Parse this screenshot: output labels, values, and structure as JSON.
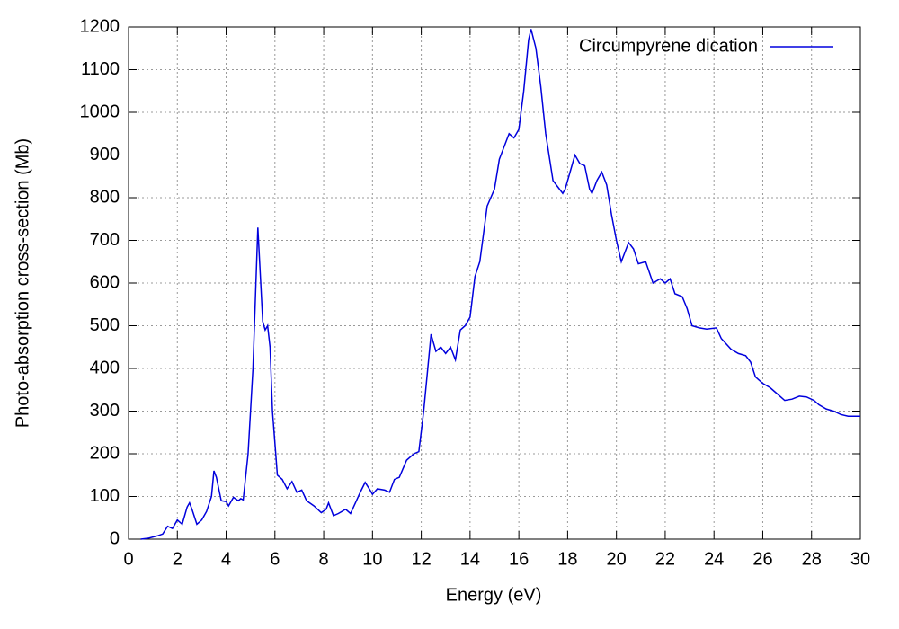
{
  "chart_data": {
    "type": "line",
    "xlabel": "Energy (eV)",
    "ylabel": "Photo-absorption cross-section (Mb)",
    "x": [
      0.5,
      0.8,
      1.0,
      1.2,
      1.4,
      1.6,
      1.8,
      2.0,
      2.2,
      2.4,
      2.5,
      2.6,
      2.8,
      3.0,
      3.2,
      3.4,
      3.5,
      3.6,
      3.8,
      4.0,
      4.1,
      4.3,
      4.5,
      4.6,
      4.7,
      4.9,
      5.1,
      5.3,
      5.4,
      5.5,
      5.6,
      5.7,
      5.8,
      5.9,
      6.1,
      6.3,
      6.5,
      6.7,
      6.9,
      7.1,
      7.3,
      7.6,
      7.9,
      8.1,
      8.2,
      8.4,
      8.6,
      8.9,
      9.1,
      9.3,
      9.5,
      9.7,
      9.9,
      10.0,
      10.2,
      10.5,
      10.7,
      10.9,
      11.1,
      11.4,
      11.7,
      11.9,
      12.1,
      12.4,
      12.6,
      12.8,
      13.0,
      13.2,
      13.4,
      13.6,
      13.8,
      14.0,
      14.2,
      14.4,
      14.7,
      15.0,
      15.2,
      15.4,
      15.6,
      15.8,
      16.0,
      16.2,
      16.4,
      16.5,
      16.7,
      16.9,
      17.1,
      17.4,
      17.6,
      17.8,
      17.9,
      18.1,
      18.3,
      18.5,
      18.7,
      18.9,
      19.0,
      19.2,
      19.4,
      19.6,
      19.8,
      20.0,
      20.2,
      20.5,
      20.7,
      20.9,
      21.2,
      21.5,
      21.8,
      22.0,
      22.2,
      22.4,
      22.7,
      22.9,
      23.1,
      23.4,
      23.7,
      24.1,
      24.3,
      24.7,
      25.0,
      25.3,
      25.5,
      25.7,
      26.0,
      26.3,
      26.6,
      26.9,
      27.2,
      27.5,
      27.8,
      28.1,
      28.3,
      28.6,
      28.9,
      29.2,
      29.5,
      30.0
    ],
    "series": [
      {
        "name": "Circumpyrene dication",
        "color": "#0000dd",
        "values": [
          0,
          2,
          5,
          8,
          12,
          30,
          25,
          45,
          35,
          75,
          85,
          70,
          35,
          45,
          65,
          100,
          160,
          145,
          90,
          88,
          78,
          98,
          90,
          95,
          92,
          200,
          400,
          730,
          620,
          510,
          490,
          500,
          450,
          300,
          150,
          140,
          118,
          135,
          110,
          115,
          90,
          78,
          62,
          70,
          85,
          55,
          60,
          70,
          60,
          85,
          110,
          133,
          115,
          105,
          118,
          115,
          110,
          140,
          145,
          185,
          200,
          205,
          300,
          480,
          440,
          450,
          435,
          450,
          420,
          490,
          500,
          520,
          615,
          650,
          780,
          820,
          890,
          920,
          950,
          940,
          960,
          1050,
          1170,
          1195,
          1150,
          1060,
          950,
          840,
          825,
          810,
          820,
          860,
          900,
          880,
          875,
          820,
          810,
          840,
          860,
          830,
          760,
          700,
          650,
          695,
          680,
          645,
          650,
          600,
          610,
          600,
          610,
          575,
          568,
          540,
          500,
          495,
          492,
          495,
          470,
          445,
          435,
          430,
          415,
          380,
          365,
          355,
          340,
          325,
          328,
          335,
          333,
          325,
          315,
          305,
          300,
          292,
          288,
          288
        ]
      }
    ],
    "xlim": [
      0,
      30
    ],
    "xticks": [
      0,
      2,
      4,
      6,
      8,
      10,
      12,
      14,
      16,
      18,
      20,
      22,
      24,
      26,
      28,
      30
    ],
    "ylim": [
      0,
      1200
    ],
    "yticks": [
      0,
      100,
      200,
      300,
      400,
      500,
      600,
      700,
      800,
      900,
      1000,
      1100,
      1200
    ],
    "grid": true,
    "legend": "top-right"
  }
}
